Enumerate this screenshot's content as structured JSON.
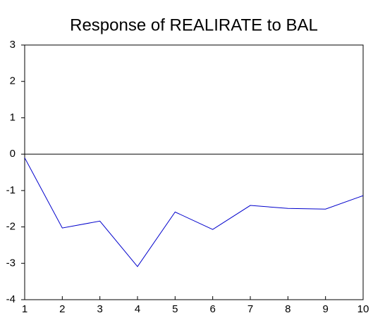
{
  "chart_data": {
    "type": "line",
    "title": "Response of REALIRATE to BAL",
    "x": [
      1,
      2,
      3,
      4,
      5,
      6,
      7,
      8,
      9,
      10
    ],
    "series": [
      {
        "name": "REALIRATE",
        "color": "#0000cc",
        "values": [
          -0.1,
          -2.03,
          -1.84,
          -3.09,
          -1.59,
          -2.07,
          -1.41,
          -1.49,
          -1.51,
          -1.14
        ]
      }
    ],
    "xlim": [
      1,
      10
    ],
    "xticks": [
      1,
      2,
      3,
      4,
      5,
      6,
      7,
      8,
      9,
      10
    ],
    "ylim": [
      -4,
      3
    ],
    "yticks": [
      -4,
      -3,
      -2,
      -1,
      0,
      1,
      2,
      3
    ],
    "zero_line": true
  }
}
